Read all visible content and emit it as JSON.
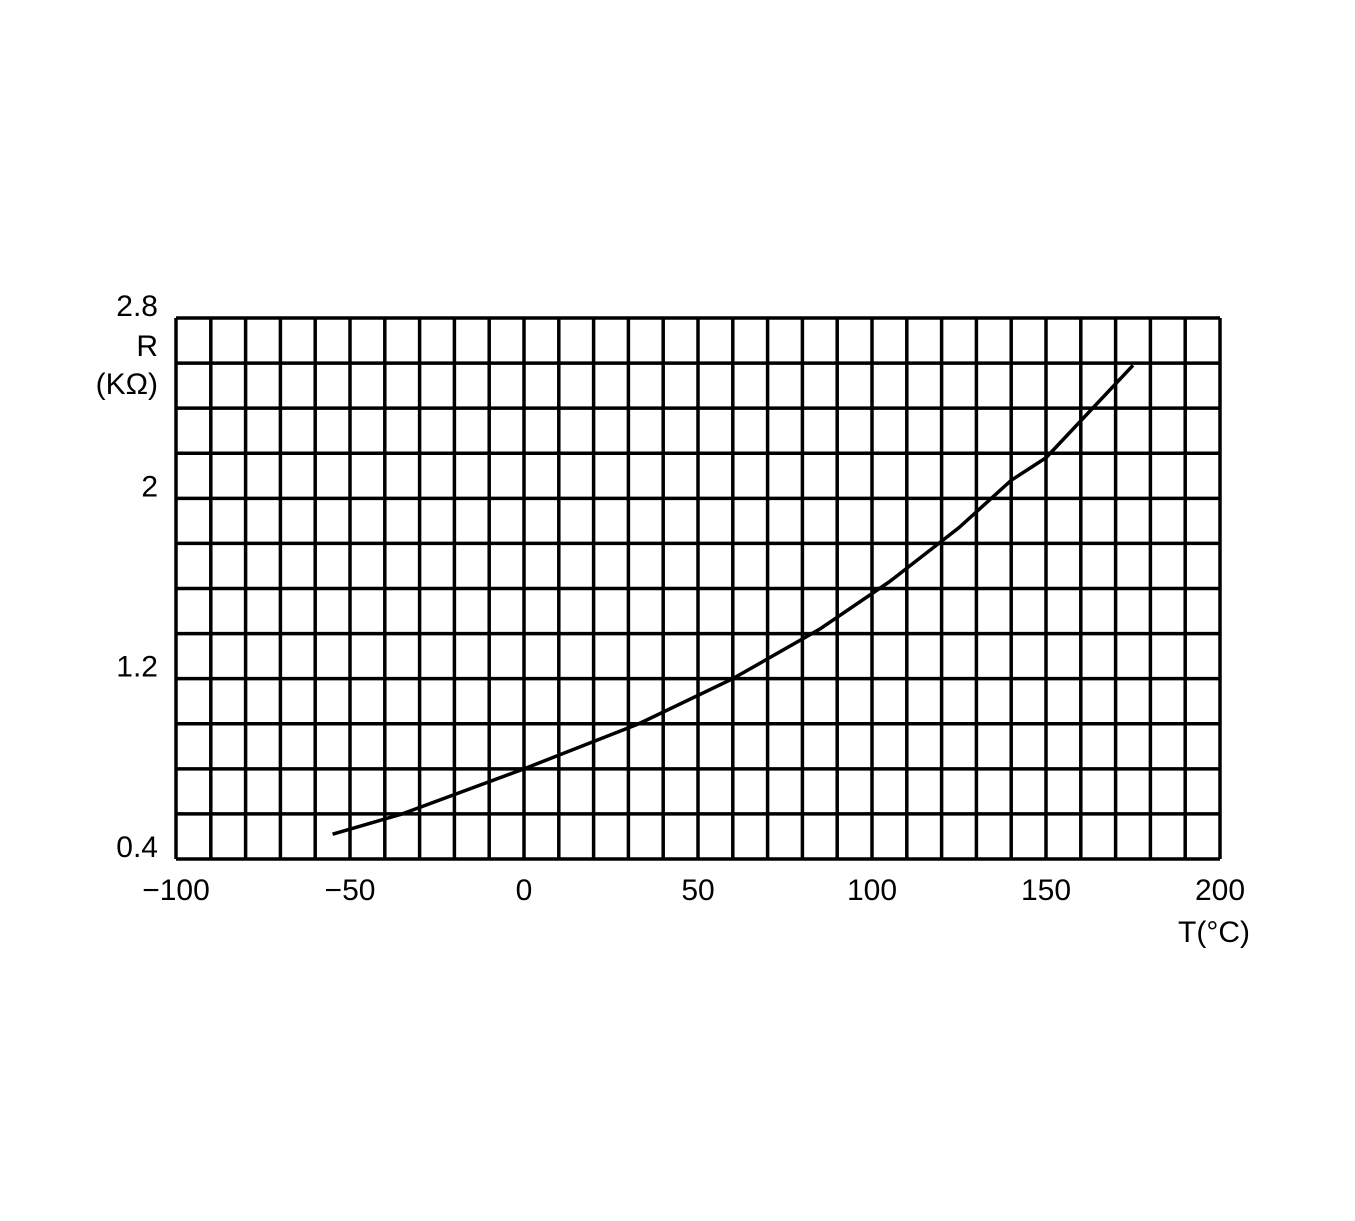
{
  "chart_data": {
    "type": "line",
    "xlabel": "T(°C)",
    "ylabel": [
      "R",
      "(KΩ)"
    ],
    "xlim": [
      -100,
      200
    ],
    "ylim": [
      0.4,
      2.8
    ],
    "xticks": [
      {
        "value": -100,
        "label": "−100"
      },
      {
        "value": -50,
        "label": "−50"
      },
      0,
      50,
      100,
      150,
      200
    ],
    "yticks": [
      0.4,
      1.2,
      2,
      2.8
    ],
    "xgrid": [
      -100,
      -90,
      -80,
      -70,
      -60,
      -50,
      -40,
      -30,
      -20,
      -10,
      0,
      10,
      20,
      30,
      40,
      50,
      60,
      70,
      80,
      90,
      100,
      110,
      120,
      130,
      140,
      150,
      160,
      170,
      180,
      190,
      200
    ],
    "ygrid": [
      0.4,
      0.6,
      0.8,
      1,
      1.2,
      1.4,
      1.6,
      1.8,
      2,
      2.2,
      2.4,
      2.6,
      2.8
    ],
    "grid": true,
    "x": [
      -55,
      -35,
      0,
      33,
      60,
      85,
      105,
      125,
      140,
      150,
      175
    ],
    "series": [
      {
        "color": "#000000",
        "values": [
          0.51,
          0.6,
          0.8,
          1.0,
          1.2,
          1.42,
          1.63,
          1.87,
          2.08,
          2.18,
          2.59
        ]
      }
    ]
  }
}
